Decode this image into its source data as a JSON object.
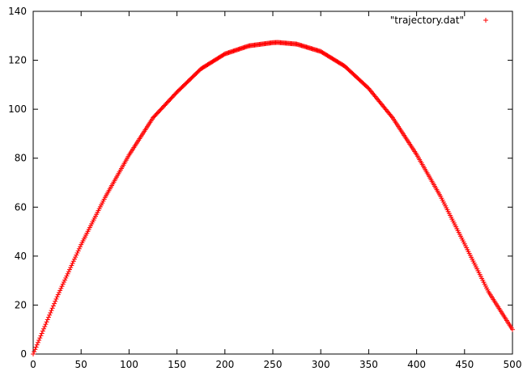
{
  "chart_data": {
    "type": "scatter",
    "title": "",
    "xlabel": "",
    "ylabel": "",
    "xlim": [
      0,
      500
    ],
    "ylim": [
      0,
      140
    ],
    "xticks": [
      0,
      50,
      100,
      150,
      200,
      250,
      300,
      350,
      400,
      450,
      500
    ],
    "yticks": [
      0,
      20,
      40,
      60,
      80,
      100,
      120,
      140
    ],
    "grid": false,
    "legend_position": "top-right",
    "marker": "+",
    "series": [
      {
        "name": "\"trajectory.dat\"",
        "color": "#ff0000",
        "x": [
          0,
          25,
          50,
          75,
          100,
          125,
          150,
          175,
          200,
          225,
          250,
          255,
          275,
          300,
          325,
          350,
          375,
          400,
          425,
          450,
          475,
          500
        ],
        "y": [
          0,
          23.4,
          44.7,
          64.0,
          81.3,
          96.5,
          107.0,
          116.5,
          122.6,
          125.9,
          127.2,
          127.3,
          126.6,
          123.6,
          117.6,
          108.5,
          96.5,
          81.5,
          64.4,
          45.0,
          25.4,
          10.0
        ]
      }
    ]
  }
}
